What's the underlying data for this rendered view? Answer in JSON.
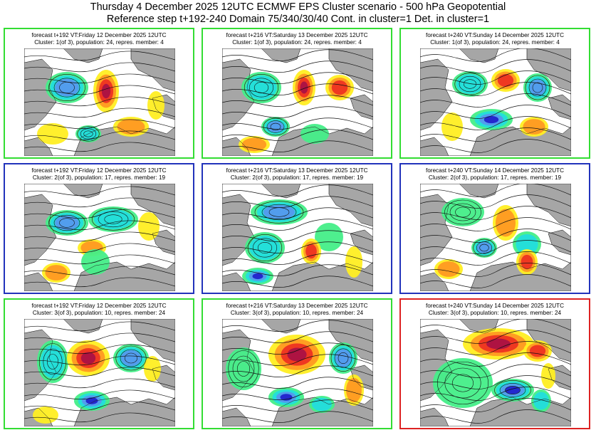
{
  "title_line1": "Thursday 4 December 2025 12UTC ECMWF EPS Cluster scenario - 500 hPa Geopotential",
  "title_line2": "Reference step t+192-240 Domain 75/340/30/40 Cont. in cluster=1 Det. in cluster=1",
  "colors": {
    "border_green": "#33dd33",
    "border_blue": "#2233bb",
    "border_red": "#dd2222",
    "land": "#a6a6a6",
    "sea": "#ffffff",
    "anomaly_negative": [
      "#2222cc",
      "#5599ee",
      "#22dddd",
      "#44ee88"
    ],
    "anomaly_positive": [
      "#ffee22",
      "#ff9922",
      "#ee3322",
      "#aa1144"
    ]
  },
  "panels": [
    {
      "caption1": "forecast t+192 VT:Friday 12 December 2025 12UTC",
      "caption2": "Cluster: 1(of 3), population: 24, repres. member: 4",
      "border": "green"
    },
    {
      "caption1": "forecast t+216 VT:Saturday 13 December 2025 12UTC",
      "caption2": "Cluster: 1(of 3), population: 24, repres. member: 4",
      "border": "green"
    },
    {
      "caption1": "forecast t+240 VT:Sunday 14 December 2025 12UTC",
      "caption2": "Cluster: 1(of 3), population: 24, repres. member: 4",
      "border": "green"
    },
    {
      "caption1": "forecast t+192 VT:Friday 12 December 2025 12UTC",
      "caption2": "Cluster: 2(of 3), population: 17, repres. member: 19",
      "border": "blue"
    },
    {
      "caption1": "forecast t+216 VT:Saturday 13 December 2025 12UTC",
      "caption2": "Cluster: 2(of 3), population: 17, repres. member: 19",
      "border": "blue"
    },
    {
      "caption1": "forecast t+240 VT:Sunday 14 December 2025 12UTC",
      "caption2": "Cluster: 2(of 3), population: 17, repres. member: 19",
      "border": "blue"
    },
    {
      "caption1": "forecast t+192 VT:Friday 12 December 2025 12UTC",
      "caption2": "Cluster: 3(of 3), population: 10, repres. member: 24",
      "border": "green"
    },
    {
      "caption1": "forecast t+216 VT:Saturday 13 December 2025 12UTC",
      "caption2": "Cluster: 3(of 3), population: 10, repres. member: 24",
      "border": "green"
    },
    {
      "caption1": "forecast t+240 VT:Sunday 14 December 2025 12UTC",
      "caption2": "Cluster: 3(of 3), population: 10, repres. member: 24",
      "border": "red"
    }
  ]
}
